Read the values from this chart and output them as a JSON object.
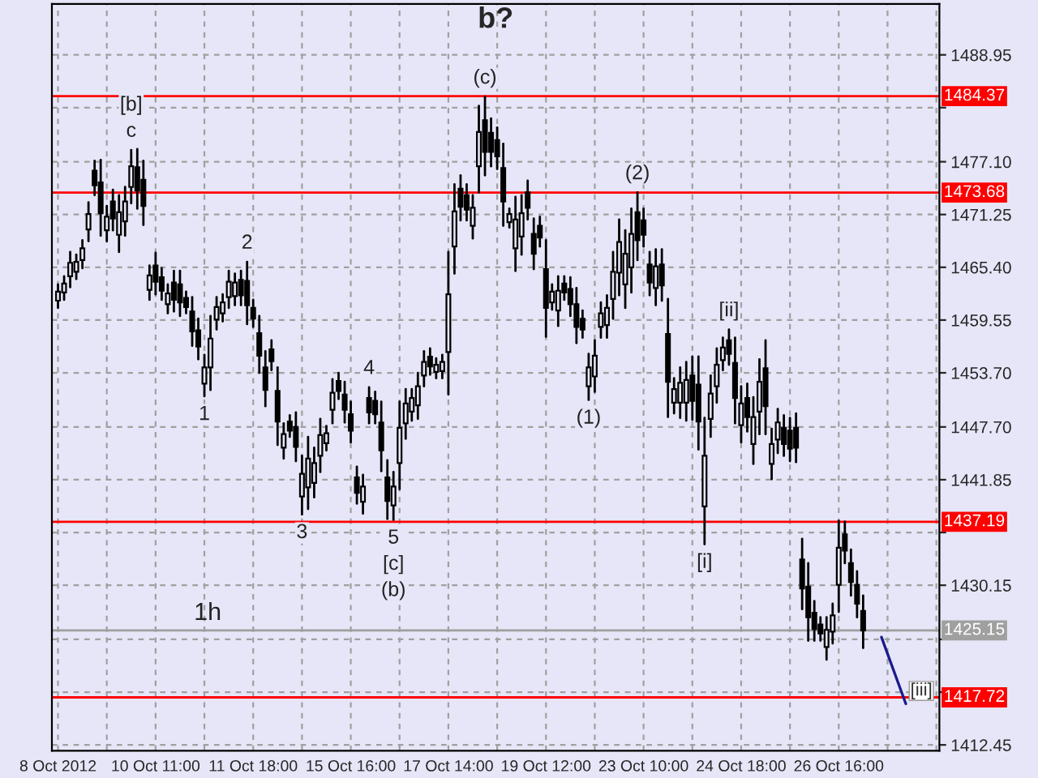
{
  "chart_data": {
    "type": "candlestick",
    "title": "b?",
    "color": "#000000",
    "grid": true,
    "categories": [
      "8 Oct 2012",
      null,
      null,
      null,
      null,
      null,
      null,
      null,
      null,
      null,
      null,
      null,
      null,
      null,
      null,
      null,
      "10 Oct 11:00",
      null,
      null,
      null,
      null,
      null,
      null,
      null,
      null,
      null,
      null,
      null,
      null,
      null,
      null,
      null,
      "11 Oct 18:00",
      null,
      null,
      null,
      null,
      null,
      null,
      null,
      null,
      null,
      null,
      null,
      null,
      null,
      null,
      null,
      "15 Oct 16:00",
      null,
      null,
      null,
      null,
      null,
      null,
      null,
      null,
      null,
      null,
      null,
      null,
      null,
      null,
      null,
      "17 Oct 14:00",
      null,
      null,
      null,
      null,
      null,
      null,
      null,
      null,
      null,
      null,
      null,
      null,
      null,
      null,
      null,
      "19 Oct 12:00",
      null,
      null,
      null,
      null,
      null,
      null,
      null,
      null,
      null,
      null,
      null,
      null,
      null,
      null,
      null,
      "23 Oct 10:00",
      null,
      null,
      null,
      null,
      null,
      null,
      null,
      null,
      null,
      null,
      null,
      null,
      null,
      null,
      null,
      "24 Oct 18:00",
      null,
      null,
      null,
      null,
      null,
      null,
      null,
      null,
      null,
      null,
      null,
      null,
      null,
      null,
      null,
      "26 Oct 16:00",
      null,
      null,
      null,
      null,
      null,
      null,
      null,
      null,
      null,
      null,
      null,
      null,
      null,
      null,
      null,
      null
    ],
    "ohlc": [
      [
        1461.7,
        1463.5,
        1460.9,
        1462.7
      ],
      [
        1462.6,
        1464.4,
        1461.8,
        1463.6
      ],
      [
        1464.4,
        1467.1,
        1463.2,
        1465.9
      ],
      [
        1464.9,
        1466.8,
        1464.1,
        1466.0
      ],
      [
        1466.2,
        1468.4,
        1465.3,
        1467.5
      ],
      [
        1469.6,
        1472.6,
        1468.3,
        1471.3
      ],
      [
        1476.1,
        1477.2,
        1473.4,
        1474.5
      ],
      [
        1474.8,
        1477.3,
        1468.9,
        1471.4
      ],
      [
        1469.5,
        1472.2,
        1468.3,
        1471.0
      ],
      [
        1472.7,
        1474.0,
        1469.5,
        1470.8
      ],
      [
        1469.0,
        1473.4,
        1467.1,
        1471.5
      ],
      [
        1470.5,
        1474.3,
        1468.9,
        1472.7
      ],
      [
        1474.3,
        1478.4,
        1472.5,
        1476.6
      ],
      [
        1476.5,
        1478.5,
        1471.9,
        1473.9
      ],
      [
        1475.1,
        1477.2,
        1470.1,
        1472.2
      ],
      [
        1462.9,
        1465.6,
        1461.8,
        1464.5
      ],
      [
        1465.6,
        1467.0,
        1462.4,
        1463.8
      ],
      [
        1464.3,
        1465.3,
        1461.8,
        1462.8
      ],
      [
        1461.3,
        1463.5,
        1460.3,
        1462.5
      ],
      [
        1463.7,
        1465.0,
        1460.5,
        1461.8
      ],
      [
        1463.5,
        1465.0,
        1460.0,
        1461.5
      ],
      [
        1462.0,
        1462.7,
        1460.3,
        1461.0
      ],
      [
        1460.5,
        1462.1,
        1456.7,
        1458.3
      ],
      [
        1458.4,
        1459.7,
        1455.2,
        1456.6
      ],
      [
        1452.5,
        1455.7,
        1451.1,
        1454.3
      ],
      [
        1454.3,
        1460.0,
        1451.8,
        1457.5
      ],
      [
        1459.6,
        1462.1,
        1458.5,
        1461.0
      ],
      [
        1460.3,
        1462.4,
        1459.4,
        1461.5
      ],
      [
        1462.1,
        1465.0,
        1460.9,
        1463.8
      ],
      [
        1462.2,
        1464.7,
        1461.2,
        1463.7
      ],
      [
        1464.0,
        1465.0,
        1461.2,
        1462.3
      ],
      [
        1463.9,
        1466.0,
        1459.1,
        1461.2
      ],
      [
        1460.9,
        1461.8,
        1458.8,
        1459.7
      ],
      [
        1458.1,
        1460.0,
        1453.7,
        1455.6
      ],
      [
        1454.3,
        1456.1,
        1450.0,
        1451.8
      ],
      [
        1456.3,
        1457.3,
        1454.0,
        1455.0
      ],
      [
        1451.7,
        1454.3,
        1445.7,
        1448.3
      ],
      [
        1445.4,
        1448.1,
        1444.2,
        1446.9
      ],
      [
        1448.3,
        1449.0,
        1446.6,
        1447.3
      ],
      [
        1447.7,
        1449.3,
        1443.9,
        1445.5
      ],
      [
        1440.0,
        1444.5,
        1438.0,
        1442.5
      ],
      [
        1441.0,
        1446.6,
        1438.6,
        1444.2
      ],
      [
        1441.5,
        1445.4,
        1439.9,
        1443.7
      ],
      [
        1444.5,
        1448.6,
        1442.7,
        1446.8
      ],
      [
        1445.9,
        1447.8,
        1445.1,
        1447.0
      ],
      [
        1449.6,
        1453.0,
        1448.1,
        1451.5
      ],
      [
        1452.8,
        1453.7,
        1450.8,
        1451.7
      ],
      [
        1451.3,
        1452.7,
        1448.2,
        1449.6
      ],
      [
        1449.1,
        1450.5,
        1446.0,
        1447.3
      ],
      [
        1442.1,
        1443.3,
        1439.2,
        1440.4
      ],
      [
        1439.4,
        1442.4,
        1438.1,
        1441.1
      ],
      [
        1450.9,
        1452.1,
        1448.1,
        1449.3
      ],
      [
        1450.6,
        1451.6,
        1448.1,
        1449.1
      ],
      [
        1448.2,
        1450.5,
        1442.8,
        1445.1
      ],
      [
        1442.1,
        1444.0,
        1437.5,
        1439.5
      ],
      [
        1439.0,
        1442.7,
        1437.4,
        1441.1
      ],
      [
        1443.7,
        1450.5,
        1440.8,
        1447.6
      ],
      [
        1448.1,
        1451.9,
        1446.4,
        1450.3
      ],
      [
        1449.4,
        1451.9,
        1448.4,
        1450.9
      ],
      [
        1450.1,
        1453.7,
        1448.6,
        1452.2
      ],
      [
        1453.4,
        1456.1,
        1452.2,
        1454.9
      ],
      [
        1455.5,
        1456.4,
        1453.5,
        1454.4
      ],
      [
        1453.8,
        1455.3,
        1453.1,
        1454.6
      ],
      [
        1453.9,
        1455.7,
        1453.1,
        1454.9
      ],
      [
        1456.0,
        1467.1,
        1451.3,
        1462.4
      ],
      [
        1467.7,
        1474.6,
        1464.7,
        1471.6
      ],
      [
        1474.1,
        1475.6,
        1470.6,
        1472.1
      ],
      [
        1473.4,
        1474.6,
        1470.6,
        1471.8
      ],
      [
        1470.0,
        1473.4,
        1468.6,
        1472.0
      ],
      [
        1476.6,
        1483.3,
        1473.7,
        1480.4
      ],
      [
        1481.7,
        1484.3,
        1475.6,
        1478.2
      ],
      [
        1480.3,
        1481.9,
        1476.6,
        1478.2
      ],
      [
        1479.5,
        1480.9,
        1476.3,
        1477.7
      ],
      [
        1476.4,
        1479.1,
        1470.0,
        1472.7
      ],
      [
        1470.4,
        1471.9,
        1469.8,
        1471.3
      ],
      [
        1467.5,
        1473.2,
        1465.0,
        1470.7
      ],
      [
        1468.8,
        1473.4,
        1466.8,
        1471.4
      ],
      [
        1473.7,
        1475.0,
        1470.7,
        1472.0
      ],
      [
        1469.1,
        1470.8,
        1465.2,
        1466.9
      ],
      [
        1470.0,
        1471.0,
        1467.7,
        1468.7
      ],
      [
        1465.2,
        1468.4,
        1457.7,
        1460.9
      ],
      [
        1461.5,
        1463.5,
        1460.7,
        1462.7
      ],
      [
        1460.6,
        1464.4,
        1458.9,
        1462.8
      ],
      [
        1463.6,
        1464.4,
        1461.8,
        1462.6
      ],
      [
        1463.0,
        1464.3,
        1460.0,
        1461.3
      ],
      [
        1461.3,
        1463.1,
        1457.0,
        1458.8
      ],
      [
        1459.7,
        1460.6,
        1457.6,
        1458.5
      ],
      [
        1452.2,
        1455.8,
        1450.7,
        1454.3
      ],
      [
        1453.3,
        1457.3,
        1451.6,
        1455.6
      ],
      [
        1458.8,
        1461.5,
        1457.6,
        1460.3
      ],
      [
        1459.0,
        1462.3,
        1457.6,
        1460.9
      ],
      [
        1461.9,
        1467.1,
        1459.7,
        1464.9
      ],
      [
        1464.8,
        1470.7,
        1462.3,
        1468.2
      ],
      [
        1463.5,
        1469.5,
        1460.9,
        1466.9
      ],
      [
        1465.4,
        1471.9,
        1462.6,
        1469.1
      ],
      [
        1471.5,
        1473.7,
        1466.2,
        1468.4
      ],
      [
        1470.6,
        1471.9,
        1467.7,
        1469.0
      ],
      [
        1465.7,
        1467.1,
        1462.3,
        1463.7
      ],
      [
        1463.1,
        1467.4,
        1461.2,
        1465.5
      ],
      [
        1465.7,
        1467.4,
        1461.7,
        1463.4
      ],
      [
        1458.0,
        1461.9,
        1448.8,
        1452.7
      ],
      [
        1450.4,
        1453.1,
        1449.2,
        1451.9
      ],
      [
        1450.4,
        1454.3,
        1448.7,
        1452.6
      ],
      [
        1450.4,
        1454.9,
        1448.4,
        1452.9
      ],
      [
        1453.4,
        1455.5,
        1448.5,
        1450.6
      ],
      [
        1452.4,
        1455.5,
        1445.2,
        1448.3
      ],
      [
        1438.9,
        1448.7,
        1434.7,
        1444.5
      ],
      [
        1448.6,
        1453.4,
        1446.6,
        1451.4
      ],
      [
        1452.2,
        1456.4,
        1450.4,
        1454.6
      ],
      [
        1455.1,
        1457.6,
        1454.0,
        1456.5
      ],
      [
        1457.3,
        1458.5,
        1454.6,
        1455.8
      ],
      [
        1454.8,
        1457.6,
        1448.1,
        1450.9
      ],
      [
        1447.9,
        1452.2,
        1446.0,
        1450.3
      ],
      [
        1450.9,
        1452.5,
        1447.2,
        1448.8
      ],
      [
        1445.8,
        1451.0,
        1443.6,
        1448.8
      ],
      [
        1449.4,
        1455.2,
        1446.9,
        1452.7
      ],
      [
        1454.2,
        1457.3,
        1446.9,
        1450.0
      ],
      [
        1443.6,
        1447.5,
        1441.9,
        1445.8
      ],
      [
        1446.3,
        1449.7,
        1444.8,
        1448.2
      ],
      [
        1447.6,
        1449.0,
        1444.5,
        1445.8
      ],
      [
        1447.3,
        1448.7,
        1443.9,
        1445.3
      ],
      [
        1447.6,
        1449.2,
        1443.8,
        1445.4
      ],
      [
        1433.0,
        1435.3,
        1427.5,
        1429.8
      ],
      [
        1430.0,
        1432.6,
        1424.0,
        1426.6
      ],
      [
        1427.1,
        1428.4,
        1424.0,
        1425.3
      ],
      [
        1425.8,
        1426.6,
        1424.0,
        1424.8
      ],
      [
        1423.3,
        1426.6,
        1421.9,
        1425.2
      ],
      [
        1425.0,
        1428.1,
        1423.7,
        1426.8
      ],
      [
        1430.2,
        1437.3,
        1427.2,
        1434.3
      ],
      [
        1435.8,
        1437.2,
        1432.6,
        1434.0
      ],
      [
        1432.6,
        1434.1,
        1429.0,
        1430.5
      ],
      [
        1430.2,
        1431.7,
        1426.6,
        1428.1
      ],
      [
        1427.3,
        1429.0,
        1423.2,
        1425.15
      ],
      null,
      null,
      null,
      null,
      null,
      null,
      null,
      null,
      null,
      null,
      null,
      null
    ],
    "value_labels": [
      null,
      null,
      null,
      null,
      null,
      null,
      null,
      null,
      null,
      null,
      null,
      null,
      "[b]\nc",
      null,
      null,
      null,
      null,
      null,
      null,
      null,
      null,
      null,
      null,
      null,
      "1",
      null,
      null,
      null,
      null,
      null,
      null,
      "2",
      null,
      null,
      null,
      null,
      null,
      null,
      null,
      null,
      "3",
      null,
      null,
      null,
      null,
      null,
      null,
      null,
      null,
      null,
      null,
      "4",
      null,
      null,
      null,
      "5\n[c]\n(b)",
      null,
      null,
      null,
      null,
      null,
      null,
      null,
      null,
      null,
      null,
      null,
      null,
      null,
      null,
      "(c)",
      null,
      null,
      null,
      null,
      null,
      null,
      null,
      null,
      null,
      null,
      null,
      null,
      null,
      null,
      null,
      null,
      "(1)",
      null,
      null,
      null,
      null,
      null,
      null,
      null,
      "(2)",
      null,
      null,
      null,
      null,
      null,
      null,
      null,
      null,
      null,
      null,
      "[i]",
      null,
      null,
      null,
      "[ii]",
      null,
      null,
      null,
      null,
      null,
      null,
      null,
      null,
      null,
      null,
      null,
      null,
      null,
      null,
      null,
      null,
      null,
      null,
      null,
      null,
      null,
      null,
      null,
      null,
      null,
      null,
      null,
      null,
      null,
      null,
      null,
      null,
      null,
      null
    ],
    "series": [
      {
        "type": "line",
        "name": "[iii]",
        "color": "#1c1c8c",
        "values": [
          null,
          null,
          null,
          null,
          null,
          null,
          null,
          null,
          null,
          null,
          null,
          null,
          null,
          null,
          null,
          null,
          null,
          null,
          null,
          null,
          null,
          null,
          null,
          null,
          null,
          null,
          null,
          null,
          null,
          null,
          null,
          null,
          null,
          null,
          null,
          null,
          null,
          null,
          null,
          null,
          null,
          null,
          null,
          null,
          null,
          null,
          null,
          null,
          null,
          null,
          null,
          null,
          null,
          null,
          null,
          null,
          null,
          null,
          null,
          null,
          null,
          null,
          null,
          null,
          null,
          null,
          null,
          null,
          null,
          null,
          null,
          null,
          null,
          null,
          null,
          null,
          null,
          null,
          null,
          null,
          null,
          null,
          null,
          null,
          null,
          null,
          null,
          null,
          null,
          null,
          null,
          null,
          null,
          null,
          null,
          null,
          null,
          null,
          null,
          null,
          null,
          null,
          null,
          null,
          null,
          null,
          null,
          null,
          null,
          null,
          null,
          null,
          null,
          null,
          null,
          null,
          null,
          null,
          null,
          null,
          null,
          null,
          null,
          null,
          null,
          null,
          null,
          null,
          null,
          null,
          null,
          null,
          null,
          null,
          null,
          1424.4,
          null,
          null,
          null,
          1417.0,
          null,
          null,
          null,
          null,
          null
        ]
      }
    ],
    "ylim": [
      1411.8,
      1494.6
    ],
    "yticks": [
      {
        "value": 1412.45,
        "label": "1412.45"
      },
      {
        "value": 1418.3,
        "label": null
      },
      {
        "value": 1424.15,
        "label": null
      },
      {
        "value": 1430.15,
        "label": "1430.15"
      },
      {
        "value": 1436.0,
        "label": null
      },
      {
        "value": 1441.85,
        "label": "1441.85"
      },
      {
        "value": 1447.7,
        "label": "1447.70"
      },
      {
        "value": 1453.7,
        "label": "1453.70"
      },
      {
        "value": 1459.55,
        "label": "1459.55"
      },
      {
        "value": 1465.4,
        "label": "1465.40"
      },
      {
        "value": 1471.25,
        "label": "1471.25"
      },
      {
        "value": 1477.1,
        "label": "1477.10"
      },
      {
        "value": 1483.1,
        "label": null
      },
      {
        "value": 1488.95,
        "label": "1488.95"
      }
    ],
    "ref_lines": [
      {
        "axis": "y",
        "value": 1484.37,
        "label": "1484.37",
        "color": "#ff0000"
      },
      {
        "axis": "y",
        "value": 1473.68,
        "label": "1473.68",
        "color": "#ff0000"
      },
      {
        "axis": "y",
        "value": 1437.19,
        "label": "1437.19",
        "color": "#ff0000"
      },
      {
        "axis": "y",
        "value": 1425.15,
        "label": "1425.15",
        "color": "#a0a0a0"
      },
      {
        "axis": "y",
        "value": 1417.72,
        "label": "1417.72",
        "color": "#ff0000"
      }
    ],
    "annotations": [
      "1h"
    ]
  }
}
